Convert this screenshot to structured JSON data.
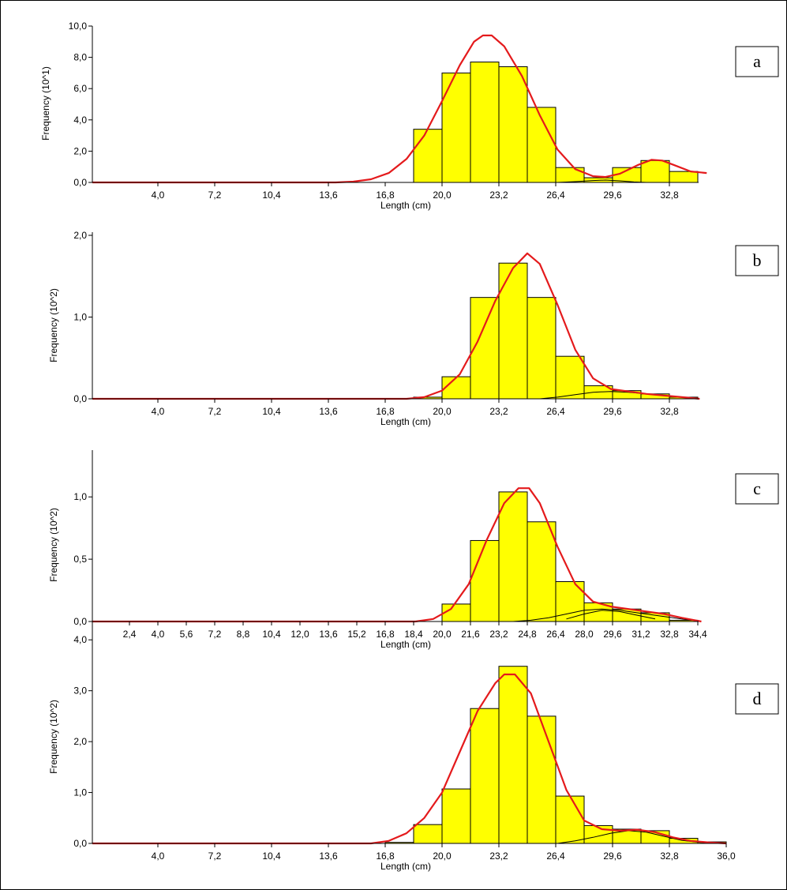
{
  "colors": {
    "bar_fill": "#FFFF00",
    "bar_stroke": "#000000",
    "fit_curve": "#E41A1C",
    "component_curve": "#000000"
  },
  "chart_data": [
    {
      "panel": "a",
      "type": "bar",
      "xlabel": "Length (cm)",
      "ylabel": "Frequency (10^1)",
      "ylim": [
        0,
        10
      ],
      "yticks": [
        0,
        2,
        4,
        6,
        8,
        10
      ],
      "ytick_labels": [
        "0,0",
        "2,0",
        "4,0",
        "6,0",
        "8,0",
        "10,0"
      ],
      "xlim": [
        0.8,
        35.0
      ],
      "xticks": [
        4.0,
        7.2,
        10.4,
        13.6,
        16.8,
        20.0,
        23.2,
        26.4,
        29.6,
        32.8
      ],
      "xtick_labels": [
        "4,0",
        "7,2",
        "10,4",
        "13,6",
        "16,8",
        "20,0",
        "23,2",
        "26,4",
        "29,6",
        "32,8"
      ],
      "bin_width": 1.6,
      "bins": [
        {
          "x": 18.4,
          "y": 3.4
        },
        {
          "x": 20.0,
          "y": 7.0
        },
        {
          "x": 21.6,
          "y": 7.7
        },
        {
          "x": 23.2,
          "y": 7.4
        },
        {
          "x": 24.8,
          "y": 4.8
        },
        {
          "x": 26.4,
          "y": 0.95
        },
        {
          "x": 28.0,
          "y": 0.3
        },
        {
          "x": 29.6,
          "y": 0.95
        },
        {
          "x": 31.2,
          "y": 1.4
        },
        {
          "x": 32.8,
          "y": 0.7
        }
      ],
      "fit": [
        [
          0.8,
          0
        ],
        [
          14.0,
          0
        ],
        [
          15.0,
          0.05
        ],
        [
          16.0,
          0.2
        ],
        [
          17.0,
          0.6
        ],
        [
          18.0,
          1.5
        ],
        [
          19.0,
          3.0
        ],
        [
          20.0,
          5.2
        ],
        [
          21.0,
          7.5
        ],
        [
          21.8,
          9.0
        ],
        [
          22.3,
          9.4
        ],
        [
          22.8,
          9.4
        ],
        [
          23.5,
          8.7
        ],
        [
          24.5,
          6.8
        ],
        [
          25.5,
          4.3
        ],
        [
          26.5,
          2.1
        ],
        [
          27.5,
          0.85
        ],
        [
          28.5,
          0.4
        ],
        [
          29.2,
          0.35
        ],
        [
          30.0,
          0.55
        ],
        [
          31.0,
          1.1
        ],
        [
          31.8,
          1.45
        ],
        [
          32.4,
          1.4
        ],
        [
          33.2,
          1.05
        ],
        [
          34.0,
          0.7
        ],
        [
          34.9,
          0.6
        ]
      ],
      "components": [
        [
          [
            26.5,
            0
          ],
          [
            27.5,
            0.05
          ],
          [
            28.5,
            0.12
          ],
          [
            29.2,
            0.15
          ],
          [
            30.0,
            0.1
          ],
          [
            30.8,
            0.03
          ],
          [
            31.5,
            0
          ]
        ]
      ]
    },
    {
      "panel": "b",
      "type": "bar",
      "xlabel": "Length (cm)",
      "ylabel": "Frequency (10^2)",
      "ylim": [
        0,
        2
      ],
      "yticks": [
        0,
        1,
        2
      ],
      "ytick_labels": [
        "0,0",
        "1,0",
        "2,0"
      ],
      "xlim": [
        0.8,
        35.0
      ],
      "xticks": [
        4.0,
        7.2,
        10.4,
        13.6,
        16.8,
        20.0,
        23.2,
        26.4,
        29.6,
        32.8
      ],
      "xtick_labels": [
        "4,0",
        "7,2",
        "10,4",
        "13,6",
        "16,8",
        "20,0",
        "23,2",
        "26,4",
        "29,6",
        "32,8"
      ],
      "bin_width": 1.6,
      "bins": [
        {
          "x": 18.4,
          "y": 0.02
        },
        {
          "x": 20.0,
          "y": 0.27
        },
        {
          "x": 21.6,
          "y": 1.24
        },
        {
          "x": 23.2,
          "y": 1.66
        },
        {
          "x": 24.8,
          "y": 1.24
        },
        {
          "x": 26.4,
          "y": 0.52
        },
        {
          "x": 28.0,
          "y": 0.16
        },
        {
          "x": 29.6,
          "y": 0.1
        },
        {
          "x": 31.2,
          "y": 0.06
        },
        {
          "x": 32.8,
          "y": 0.02
        }
      ],
      "fit": [
        [
          0.8,
          0
        ],
        [
          18.0,
          0
        ],
        [
          19.0,
          0.02
        ],
        [
          20.0,
          0.1
        ],
        [
          21.0,
          0.3
        ],
        [
          22.0,
          0.7
        ],
        [
          23.0,
          1.2
        ],
        [
          24.0,
          1.6
        ],
        [
          24.8,
          1.78
        ],
        [
          25.5,
          1.65
        ],
        [
          26.5,
          1.15
        ],
        [
          27.5,
          0.6
        ],
        [
          28.5,
          0.25
        ],
        [
          29.5,
          0.12
        ],
        [
          30.5,
          0.09
        ],
        [
          31.5,
          0.06
        ],
        [
          32.5,
          0.04
        ],
        [
          33.5,
          0.02
        ],
        [
          34.5,
          0.0
        ]
      ],
      "components": [
        [
          [
            25.5,
            0
          ],
          [
            26.5,
            0.02
          ],
          [
            27.5,
            0.05
          ],
          [
            28.5,
            0.08
          ],
          [
            29.5,
            0.09
          ],
          [
            30.5,
            0.08
          ],
          [
            31.5,
            0.06
          ],
          [
            32.5,
            0.04
          ],
          [
            33.5,
            0.02
          ],
          [
            34.5,
            0
          ]
        ]
      ]
    },
    {
      "panel": "c",
      "type": "bar",
      "xlabel": "Length (cm)",
      "ylabel": "Frequency (10^2)",
      "ylim": [
        0,
        1.35
      ],
      "yticks": [
        0,
        0.5,
        1.0
      ],
      "ytick_labels": [
        "0,0",
        "0,5",
        "1,0"
      ],
      "xlim": [
        0.8,
        35.0
      ],
      "xticks": [
        2.4,
        4.0,
        5.6,
        7.2,
        8.8,
        10.4,
        12.0,
        13.6,
        15.2,
        16.8,
        18.4,
        20.0,
        21.6,
        23.2,
        24.8,
        26.4,
        28.0,
        29.6,
        31.2,
        32.8,
        34.4
      ],
      "xtick_labels": [
        "2,4",
        "4,0",
        "5,6",
        "7,2",
        "8,8",
        "10,4",
        "12,0",
        "13,6",
        "15,2",
        "16,8",
        "18,4",
        "20,0",
        "21,6",
        "23,2",
        "24,8",
        "26,4",
        "28,0",
        "29,6",
        "31,2",
        "32,8",
        "34,4"
      ],
      "bin_width": 1.6,
      "bins": [
        {
          "x": 20.0,
          "y": 0.14
        },
        {
          "x": 21.6,
          "y": 0.65
        },
        {
          "x": 23.2,
          "y": 1.04
        },
        {
          "x": 24.8,
          "y": 0.8
        },
        {
          "x": 26.4,
          "y": 0.32
        },
        {
          "x": 28.0,
          "y": 0.15
        },
        {
          "x": 29.6,
          "y": 0.1
        },
        {
          "x": 31.2,
          "y": 0.07
        },
        {
          "x": 32.8,
          "y": 0.01
        }
      ],
      "fit": [
        [
          0.8,
          0
        ],
        [
          18.5,
          0
        ],
        [
          19.5,
          0.02
        ],
        [
          20.5,
          0.1
        ],
        [
          21.5,
          0.3
        ],
        [
          22.5,
          0.65
        ],
        [
          23.5,
          0.95
        ],
        [
          24.3,
          1.07
        ],
        [
          24.9,
          1.07
        ],
        [
          25.5,
          0.95
        ],
        [
          26.5,
          0.6
        ],
        [
          27.5,
          0.3
        ],
        [
          28.5,
          0.16
        ],
        [
          29.5,
          0.12
        ],
        [
          30.5,
          0.1
        ],
        [
          31.5,
          0.08
        ],
        [
          32.5,
          0.06
        ],
        [
          33.5,
          0.03
        ],
        [
          34.6,
          0.0
        ]
      ],
      "components": [
        [
          [
            24.0,
            0
          ],
          [
            25.0,
            0.01
          ],
          [
            26.0,
            0.03
          ],
          [
            27.0,
            0.06
          ],
          [
            28.0,
            0.09
          ],
          [
            29.0,
            0.1
          ],
          [
            30.0,
            0.09
          ],
          [
            31.0,
            0.07
          ],
          [
            32.0,
            0.05
          ],
          [
            33.0,
            0.03
          ],
          [
            34.0,
            0.01
          ]
        ],
        [
          [
            27.0,
            0.02
          ],
          [
            28.0,
            0.06
          ],
          [
            29.0,
            0.09
          ],
          [
            30.0,
            0.08
          ],
          [
            31.0,
            0.05
          ],
          [
            32.0,
            0.02
          ]
        ]
      ]
    },
    {
      "panel": "d",
      "type": "bar",
      "xlabel": "Length (cm)",
      "ylabel": "Frequency (10^2)",
      "ylim": [
        0,
        4.5
      ],
      "yticks": [
        0,
        1,
        2,
        3,
        4
      ],
      "ytick_labels": [
        "0,0",
        "1,0",
        "2,0",
        "3,0",
        "4,0"
      ],
      "xlim": [
        0.8,
        36.6
      ],
      "xticks": [
        4.0,
        7.2,
        10.4,
        13.6,
        16.8,
        20.0,
        23.2,
        26.4,
        29.6,
        32.8,
        36.0
      ],
      "xtick_labels": [
        "4,0",
        "7,2",
        "10,4",
        "13,6",
        "16,8",
        "20,0",
        "23,2",
        "26,4",
        "29,6",
        "32,8",
        "36,0"
      ],
      "bin_width": 1.6,
      "bins": [
        {
          "x": 16.8,
          "y": 0.02
        },
        {
          "x": 18.4,
          "y": 0.37
        },
        {
          "x": 20.0,
          "y": 1.07
        },
        {
          "x": 21.6,
          "y": 2.65
        },
        {
          "x": 23.2,
          "y": 3.48
        },
        {
          "x": 24.8,
          "y": 2.5
        },
        {
          "x": 26.4,
          "y": 0.93
        },
        {
          "x": 28.0,
          "y": 0.35
        },
        {
          "x": 29.6,
          "y": 0.28
        },
        {
          "x": 31.2,
          "y": 0.25
        },
        {
          "x": 32.8,
          "y": 0.1
        },
        {
          "x": 34.4,
          "y": 0.03
        }
      ],
      "fit": [
        [
          0.8,
          0
        ],
        [
          16.0,
          0
        ],
        [
          17.0,
          0.05
        ],
        [
          18.0,
          0.2
        ],
        [
          19.0,
          0.5
        ],
        [
          20.0,
          1.0
        ],
        [
          21.0,
          1.8
        ],
        [
          22.0,
          2.6
        ],
        [
          23.0,
          3.15
        ],
        [
          23.5,
          3.32
        ],
        [
          24.1,
          3.32
        ],
        [
          25.0,
          2.95
        ],
        [
          26.0,
          2.0
        ],
        [
          27.0,
          1.05
        ],
        [
          28.0,
          0.45
        ],
        [
          29.0,
          0.28
        ],
        [
          30.0,
          0.25
        ],
        [
          31.0,
          0.27
        ],
        [
          32.0,
          0.22
        ],
        [
          33.0,
          0.12
        ],
        [
          34.0,
          0.05
        ],
        [
          35.0,
          0.02
        ],
        [
          36.0,
          0.0
        ]
      ],
      "components": [
        [
          [
            26.5,
            0
          ],
          [
            27.5,
            0.05
          ],
          [
            28.5,
            0.12
          ],
          [
            29.5,
            0.2
          ],
          [
            30.5,
            0.25
          ],
          [
            31.5,
            0.22
          ],
          [
            32.5,
            0.14
          ],
          [
            33.5,
            0.06
          ],
          [
            34.5,
            0.02
          ],
          [
            35.5,
            0
          ]
        ]
      ]
    }
  ]
}
